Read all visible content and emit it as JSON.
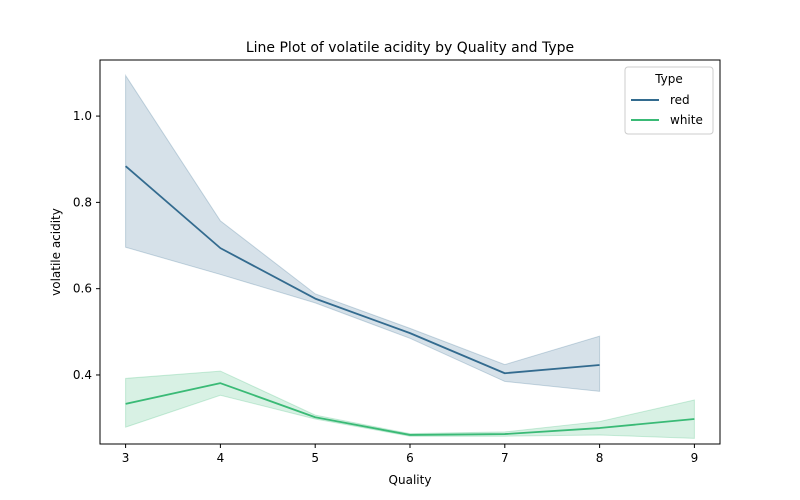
{
  "chart_data": {
    "type": "line",
    "title": "Line Plot of volatile acidity by Quality and Type",
    "xlabel": "Quality",
    "ylabel": "volatile acidity",
    "xlim": [
      2.73,
      9.27
    ],
    "ylim": [
      0.24,
      1.13
    ],
    "x_ticks": [
      3,
      4,
      5,
      6,
      7,
      8,
      9
    ],
    "y_ticks": [
      0.4,
      0.6,
      0.8,
      1.0
    ],
    "y_tick_labels": [
      "0.4",
      "0.6",
      "0.8",
      "1.0"
    ],
    "grid": false,
    "legend": {
      "title": "Type",
      "position": "top-right"
    },
    "series": [
      {
        "name": "red",
        "color": "#336b8f",
        "x": [
          3,
          4,
          5,
          6,
          7,
          8
        ],
        "y": [
          0.884,
          0.694,
          0.577,
          0.497,
          0.404,
          0.423
        ],
        "ci_low": [
          0.696,
          0.633,
          0.567,
          0.485,
          0.385,
          0.362
        ],
        "ci_high": [
          1.094,
          0.757,
          0.588,
          0.508,
          0.424,
          0.49
        ]
      },
      {
        "name": "white",
        "color": "#3aba76",
        "x": [
          3,
          4,
          5,
          6,
          7,
          8,
          9
        ],
        "y": [
          0.333,
          0.381,
          0.302,
          0.261,
          0.263,
          0.277,
          0.298
        ],
        "ci_low": [
          0.279,
          0.353,
          0.298,
          0.258,
          0.258,
          0.261,
          0.253
        ],
        "ci_high": [
          0.392,
          0.409,
          0.307,
          0.264,
          0.268,
          0.292,
          0.342
        ]
      }
    ]
  }
}
